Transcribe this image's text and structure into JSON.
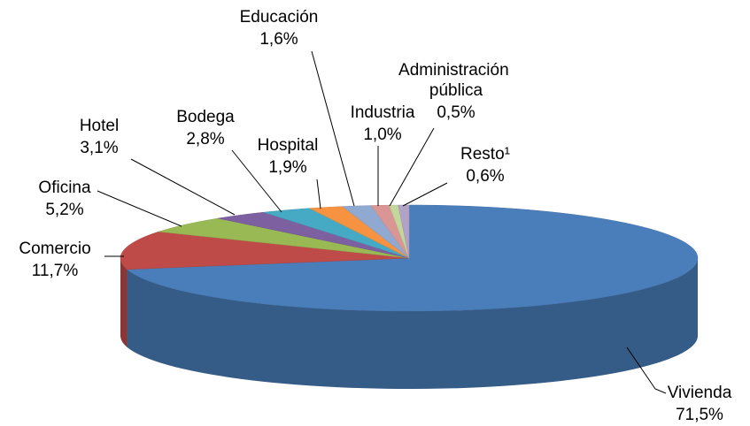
{
  "chart_data": {
    "type": "pie3d",
    "categories": [
      "Vivienda",
      "Comercio",
      "Oficina",
      "Hotel",
      "Bodega",
      "Hospital",
      "Educación",
      "Industria",
      "Administración pública",
      "Resto¹"
    ],
    "values": [
      71.5,
      11.7,
      5.2,
      3.1,
      2.8,
      1.9,
      1.6,
      1.0,
      0.5,
      0.6
    ],
    "value_labels": [
      "71,5%",
      "11,7%",
      "5,2%",
      "3,1%",
      "2,8%",
      "1,9%",
      "1,6%",
      "1,0%",
      "0,5%",
      "0,6%"
    ],
    "colors": [
      "#4a7ebb",
      "#be4b48",
      "#98b954",
      "#7d60a0",
      "#46aac5",
      "#f69240",
      "#8fa9d0",
      "#d99694",
      "#c3d69b",
      "#b3a2c7"
    ]
  }
}
